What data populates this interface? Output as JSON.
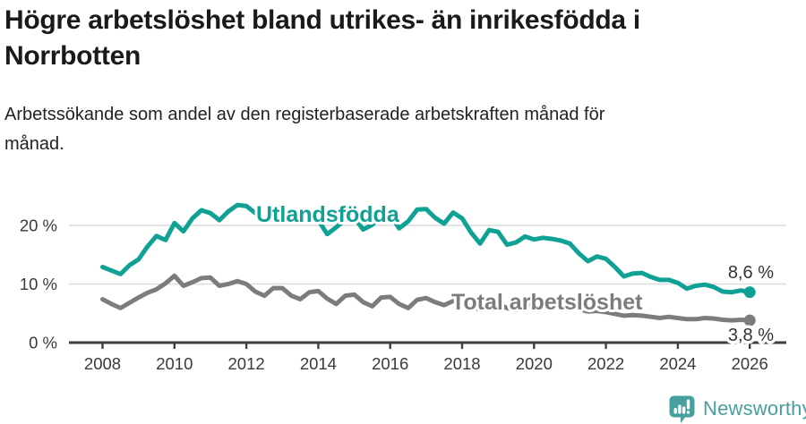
{
  "header": {
    "title": "Högre arbetslöshet bland utrikes- än inrikesfödda i Norrbotten",
    "subtitle": "Arbetssökande som andel av den registerbaserade arbetskraften månad för månad."
  },
  "footer": {
    "brand": "Newsworthy",
    "brand_color": "#47a09b"
  },
  "chart_data": {
    "type": "line",
    "title": "",
    "xlabel": "",
    "ylabel": "",
    "x_start": 2008,
    "x_step": 0.25,
    "xlim": [
      2007.05,
      2027.05
    ],
    "ylim": [
      0,
      24
    ],
    "grid": "horizontal",
    "legend_position": "inline-labels",
    "x_ticks": [
      2008,
      2010,
      2012,
      2014,
      2016,
      2018,
      2020,
      2022,
      2024,
      2026
    ],
    "y_ticks": [
      {
        "value": 0,
        "label": "0 %"
      },
      {
        "value": 10,
        "label": "10 %"
      },
      {
        "value": 20,
        "label": "20 %"
      }
    ],
    "series": [
      {
        "name": "Utlandsfödda",
        "color": "#10a195",
        "end_label": "8,6 %",
        "end_value": 8.6,
        "values": [
          12.9,
          12.3,
          11.7,
          13.2,
          14.2,
          16.4,
          18.2,
          17.5,
          20.4,
          19.0,
          21.2,
          22.6,
          22.1,
          20.9,
          22.4,
          23.5,
          23.3,
          22.1,
          20.9,
          22.4,
          22.6,
          21.4,
          20.6,
          21.8,
          20.9,
          18.5,
          19.7,
          21.0,
          21.3,
          19.3,
          20.1,
          21.6,
          21.9,
          19.5,
          20.7,
          22.7,
          22.8,
          21.3,
          20.3,
          22.2,
          21.2,
          18.8,
          16.9,
          19.2,
          18.9,
          16.7,
          17.1,
          18.1,
          17.6,
          17.9,
          17.7,
          17.4,
          16.9,
          15.2,
          13.9,
          14.7,
          14.3,
          12.9,
          11.3,
          11.8,
          11.9,
          11.2,
          10.7,
          10.7,
          10.2,
          9.2,
          9.7,
          9.9,
          9.5,
          8.7,
          8.6,
          8.9,
          8.6
        ]
      },
      {
        "name": "Total arbetslöshet",
        "color": "#7c7c7c",
        "end_label": "3,8 %",
        "end_value": 3.8,
        "values": [
          7.4,
          6.6,
          5.9,
          6.8,
          7.7,
          8.5,
          9.1,
          10.1,
          11.4,
          9.7,
          10.3,
          11.0,
          11.1,
          9.7,
          10.0,
          10.5,
          10.0,
          8.7,
          8.0,
          9.3,
          9.3,
          8.0,
          7.4,
          8.6,
          8.8,
          7.5,
          6.6,
          8.0,
          8.2,
          6.9,
          6.2,
          7.7,
          7.8,
          6.6,
          5.9,
          7.3,
          7.6,
          6.9,
          6.4,
          7.1,
          7.0,
          6.1,
          5.7,
          6.6,
          6.6,
          5.9,
          5.6,
          6.3,
          6.5,
          7.0,
          6.7,
          6.4,
          6.2,
          5.7,
          5.3,
          5.4,
          5.2,
          4.9,
          4.6,
          4.7,
          4.6,
          4.4,
          4.2,
          4.4,
          4.2,
          4.0,
          4.0,
          4.2,
          4.1,
          3.9,
          3.8,
          3.9,
          3.8
        ]
      }
    ]
  }
}
